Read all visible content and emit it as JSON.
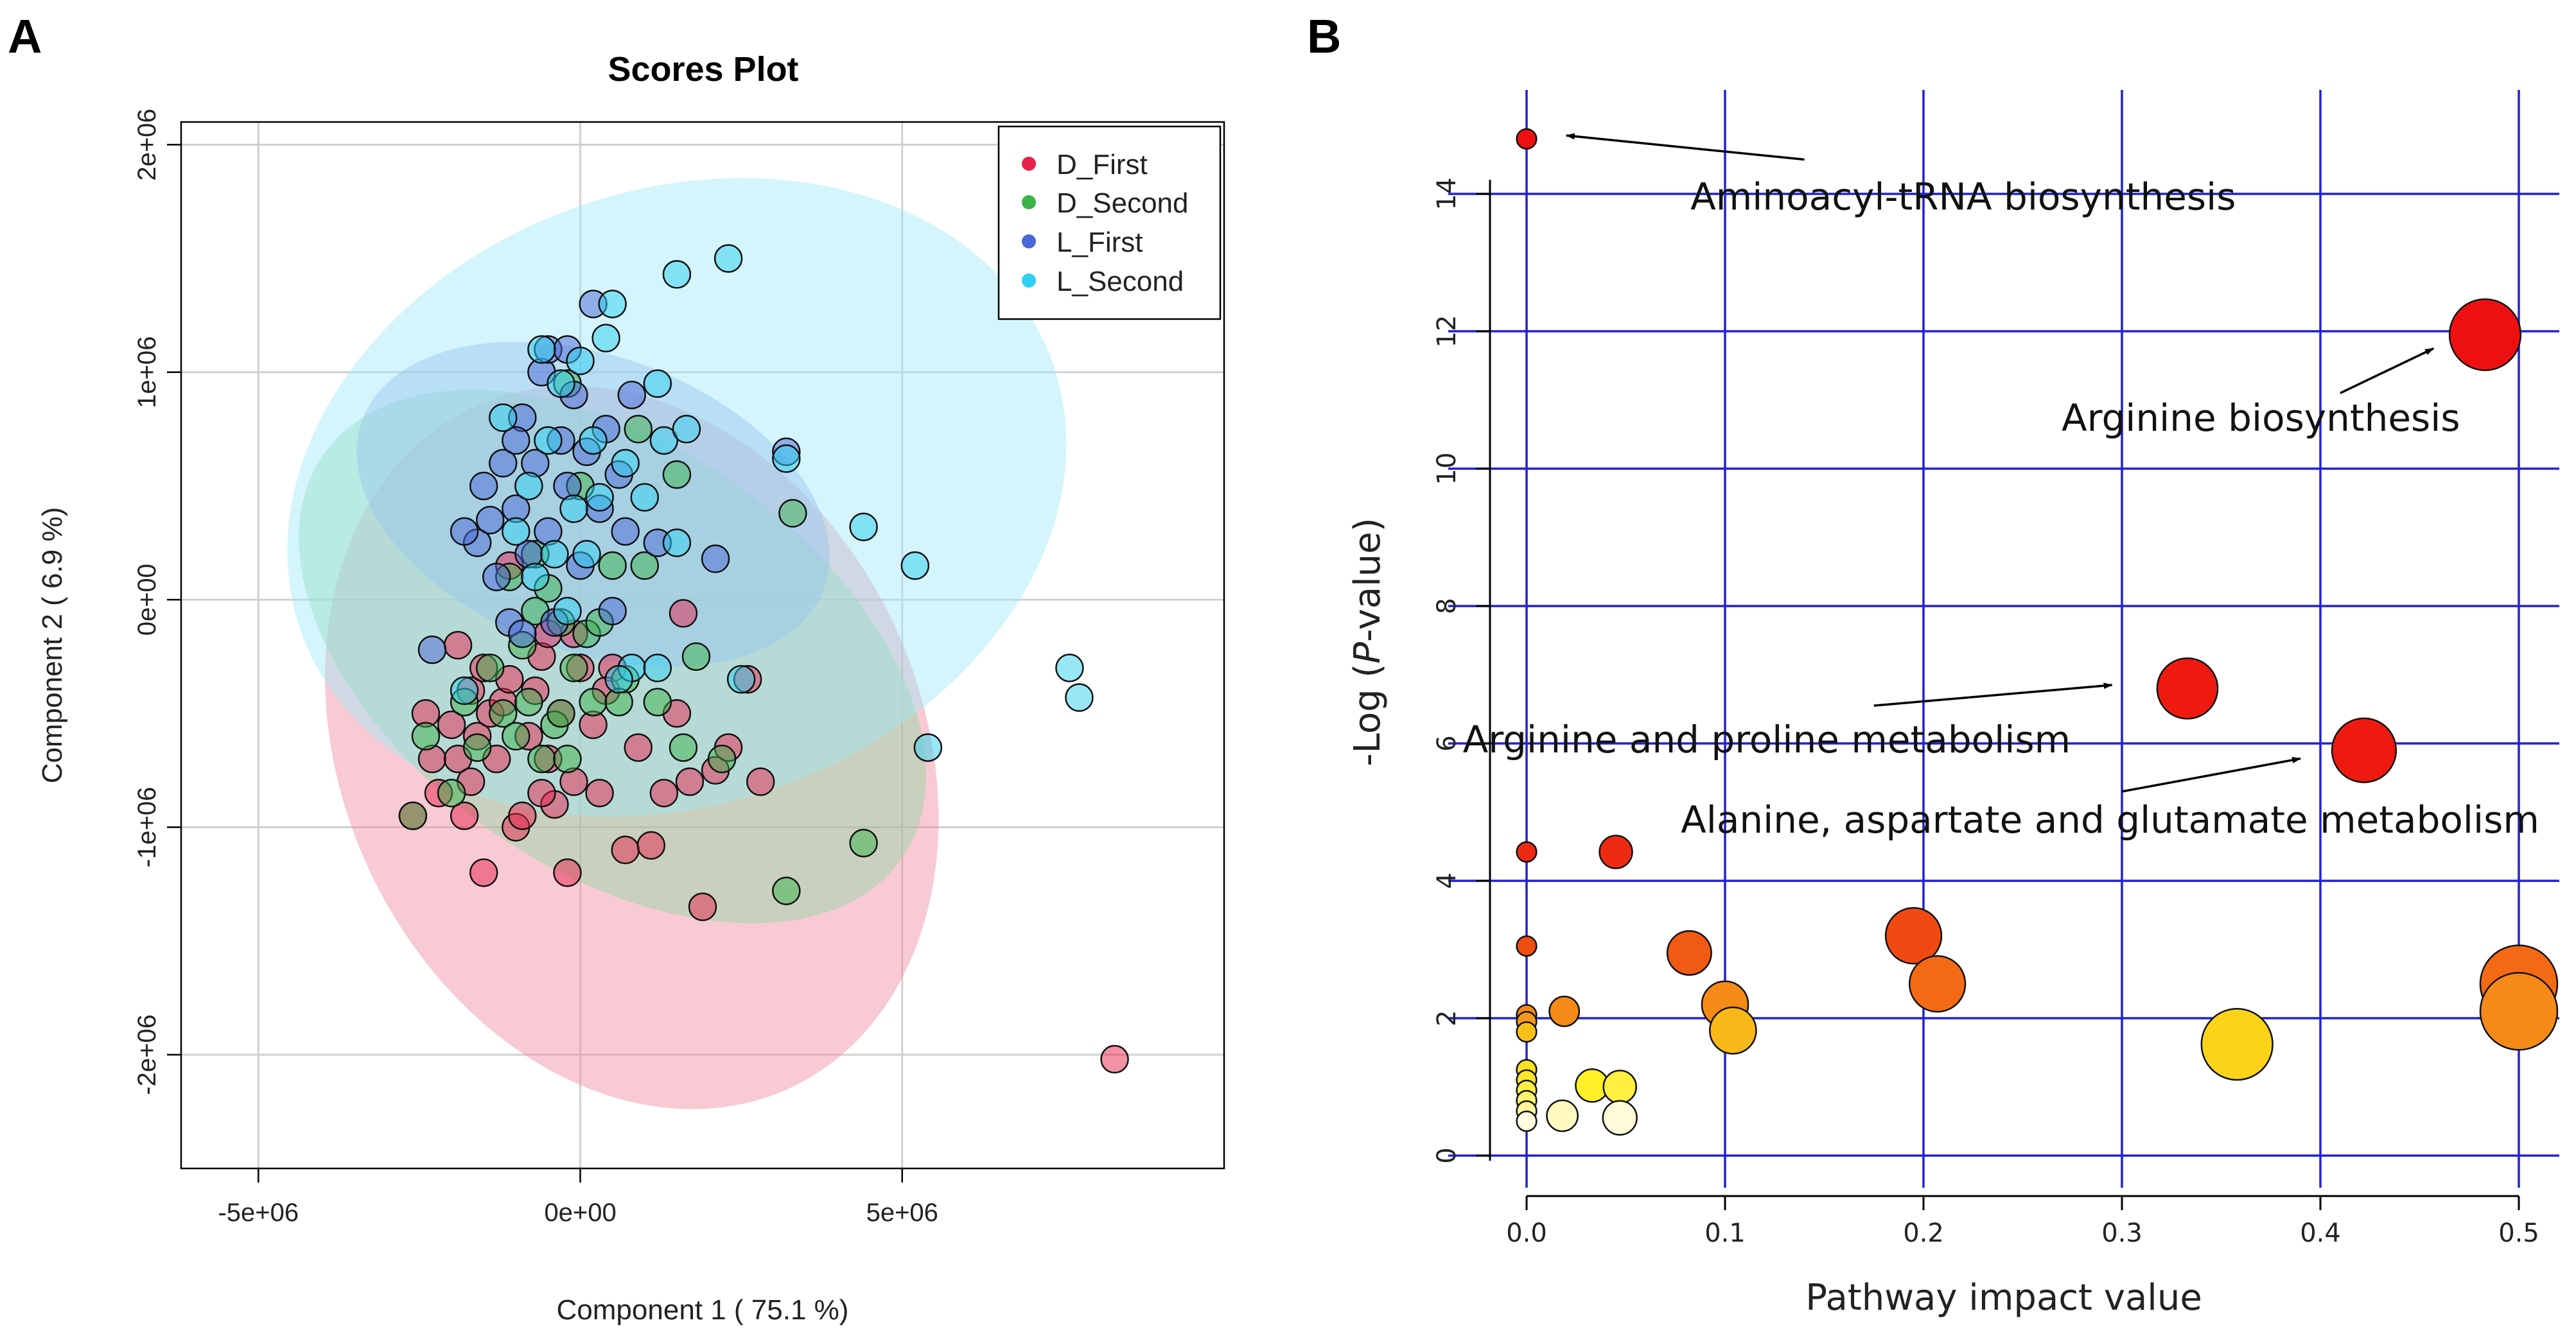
{
  "panels": {
    "a": "A",
    "b": "B"
  },
  "chart_data": [
    {
      "type": "scatter",
      "panel": "A",
      "title": "Scores Plot",
      "xlabel": "Component 1 ( 75.1 %)",
      "ylabel": "Component 2 ( 6.9 %)",
      "xlim": [
        -6200000,
        10000000
      ],
      "ylim": [
        -2500000,
        2100000
      ],
      "x_ticks": [
        -5000000,
        0,
        5000000
      ],
      "x_tick_labels": [
        "-5e+06",
        "0e+00",
        "5e+06"
      ],
      "y_ticks": [
        -2000000,
        -1000000,
        0,
        1000000,
        2000000
      ],
      "y_tick_labels": [
        "-2e+06",
        "-1e+06",
        "0e+00",
        "1e+06",
        "2e+06"
      ],
      "grid": true,
      "legend_position": "top-right",
      "colors": {
        "D_First": "#e8234b",
        "D_Second": "#3cb24b",
        "L_First": "#4a67d6",
        "L_Second": "#2fd0f0"
      },
      "ellipses": [
        {
          "name": "D_First",
          "cx": 800000,
          "cy": -650000,
          "rx": 4500000,
          "ry": 1650000,
          "angle": -25,
          "fill": "#f08aa0"
        },
        {
          "name": "D_Second",
          "cx": 500000,
          "cy": -250000,
          "rx": 3300000,
          "ry": 1550000,
          "angle": -55,
          "fill": "#90d7a2"
        },
        {
          "name": "L_First",
          "cx": 200000,
          "cy": 420000,
          "rx": 2300000,
          "ry": 1080000,
          "angle": -70,
          "fill": "#8fa8ec"
        },
        {
          "name": "L_Second",
          "cx": 1500000,
          "cy": 450000,
          "rx": 6200000,
          "ry": 1350000,
          "angle": -20,
          "fill": "#9fe8f6"
        }
      ],
      "series": [
        {
          "name": "D_First",
          "points": [
            [
              -2400000,
              -500000
            ],
            [
              -2300000,
              -700000
            ],
            [
              -2200000,
              -850000
            ],
            [
              -2000000,
              -550000
            ],
            [
              -1900000,
              -700000
            ],
            [
              -1800000,
              -950000
            ],
            [
              -1700000,
              -400000
            ],
            [
              -1700000,
              -800000
            ],
            [
              -1600000,
              -600000
            ],
            [
              -1500000,
              -300000
            ],
            [
              -1400000,
              -500000
            ],
            [
              -1300000,
              -700000
            ],
            [
              -1200000,
              -450000
            ],
            [
              -1100000,
              -350000
            ],
            [
              -1000000,
              -1000000
            ],
            [
              -900000,
              -950000
            ],
            [
              -800000,
              -600000
            ],
            [
              -700000,
              -400000
            ],
            [
              -600000,
              -250000
            ],
            [
              -500000,
              -700000
            ],
            [
              -400000,
              -900000
            ],
            [
              -300000,
              -500000
            ],
            [
              -200000,
              -1200000
            ],
            [
              -100000,
              -800000
            ],
            [
              0,
              -300000
            ],
            [
              200000,
              -550000
            ],
            [
              300000,
              -850000
            ],
            [
              500000,
              -300000
            ],
            [
              700000,
              -1100000
            ],
            [
              900000,
              -650000
            ],
            [
              1100000,
              -1080000
            ],
            [
              1300000,
              -850000
            ],
            [
              1500000,
              -500000
            ],
            [
              1700000,
              -800000
            ],
            [
              1900000,
              -1350000
            ],
            [
              2100000,
              -750000
            ],
            [
              2300000,
              -650000
            ],
            [
              2600000,
              -350000
            ],
            [
              -1500000,
              -1200000
            ],
            [
              -600000,
              -850000
            ],
            [
              -100000,
              -150000
            ],
            [
              400000,
              -400000
            ],
            [
              -2600000,
              -950000
            ],
            [
              -1100000,
              150000
            ],
            [
              -500000,
              -150000
            ],
            [
              1600000,
              -60000
            ],
            [
              2800000,
              -800000
            ],
            [
              -1900000,
              -200000
            ],
            [
              8300000,
              -2020000
            ]
          ]
        },
        {
          "name": "D_Second",
          "points": [
            [
              -2600000,
              -950000
            ],
            [
              -2400000,
              -600000
            ],
            [
              -2000000,
              -850000
            ],
            [
              -1800000,
              -450000
            ],
            [
              -1600000,
              -650000
            ],
            [
              -1400000,
              -300000
            ],
            [
              -1200000,
              -500000
            ],
            [
              -1100000,
              100000
            ],
            [
              -900000,
              -200000
            ],
            [
              -800000,
              -450000
            ],
            [
              -700000,
              200000
            ],
            [
              -600000,
              -700000
            ],
            [
              -500000,
              50000
            ],
            [
              -400000,
              -550000
            ],
            [
              -300000,
              -100000
            ],
            [
              -200000,
              -700000
            ],
            [
              -100000,
              -300000
            ],
            [
              0,
              500000
            ],
            [
              100000,
              -150000
            ],
            [
              200000,
              -450000
            ],
            [
              300000,
              -100000
            ],
            [
              500000,
              150000
            ],
            [
              700000,
              -350000
            ],
            [
              900000,
              750000
            ],
            [
              1000000,
              150000
            ],
            [
              1200000,
              -450000
            ],
            [
              1500000,
              550000
            ],
            [
              1600000,
              -650000
            ],
            [
              1800000,
              -250000
            ],
            [
              2200000,
              -700000
            ],
            [
              3300000,
              380000
            ],
            [
              3200000,
              -1280000
            ],
            [
              4400000,
              -1070000
            ],
            [
              -200000,
              950000
            ],
            [
              -700000,
              -50000
            ],
            [
              -300000,
              -500000
            ],
            [
              600000,
              -450000
            ],
            [
              -1000000,
              -600000
            ]
          ]
        },
        {
          "name": "L_First",
          "points": [
            [
              -2300000,
              -220000
            ],
            [
              -1600000,
              250000
            ],
            [
              -1500000,
              500000
            ],
            [
              -1400000,
              350000
            ],
            [
              -1300000,
              100000
            ],
            [
              -1200000,
              600000
            ],
            [
              -1100000,
              -100000
            ],
            [
              -1000000,
              400000
            ],
            [
              -900000,
              800000
            ],
            [
              -800000,
              200000
            ],
            [
              -700000,
              600000
            ],
            [
              -600000,
              1000000
            ],
            [
              -500000,
              300000
            ],
            [
              -400000,
              -100000
            ],
            [
              -300000,
              700000
            ],
            [
              -200000,
              500000
            ],
            [
              -100000,
              900000
            ],
            [
              0,
              150000
            ],
            [
              100000,
              650000
            ],
            [
              200000,
              1300000
            ],
            [
              300000,
              400000
            ],
            [
              400000,
              750000
            ],
            [
              500000,
              -50000
            ],
            [
              600000,
              550000
            ],
            [
              700000,
              300000
            ],
            [
              800000,
              900000
            ],
            [
              -1800000,
              300000
            ],
            [
              -500000,
              1100000
            ],
            [
              -200000,
              1100000
            ],
            [
              -900000,
              -150000
            ],
            [
              1200000,
              250000
            ],
            [
              2100000,
              180000
            ],
            [
              3200000,
              650000
            ],
            [
              -1000000,
              700000
            ]
          ]
        },
        {
          "name": "L_Second",
          "points": [
            [
              -1200000,
              800000
            ],
            [
              -1000000,
              300000
            ],
            [
              -800000,
              500000
            ],
            [
              -600000,
              1100000
            ],
            [
              -500000,
              700000
            ],
            [
              -400000,
              200000
            ],
            [
              -300000,
              950000
            ],
            [
              -100000,
              400000
            ],
            [
              0,
              1050000
            ],
            [
              200000,
              700000
            ],
            [
              300000,
              450000
            ],
            [
              400000,
              1150000
            ],
            [
              500000,
              1300000
            ],
            [
              700000,
              600000
            ],
            [
              800000,
              -300000
            ],
            [
              1000000,
              450000
            ],
            [
              1200000,
              950000
            ],
            [
              1300000,
              700000
            ],
            [
              1500000,
              250000
            ],
            [
              1650000,
              750000
            ],
            [
              1500000,
              1430000
            ],
            [
              2300000,
              1500000
            ],
            [
              3200000,
              620000
            ],
            [
              4400000,
              320000
            ],
            [
              5200000,
              150000
            ],
            [
              5400000,
              -650000
            ],
            [
              7600000,
              -300000
            ],
            [
              7750000,
              -430000
            ],
            [
              1200000,
              -300000
            ],
            [
              2500000,
              -350000
            ],
            [
              600000,
              -350000
            ],
            [
              -700000,
              100000
            ],
            [
              100000,
              200000
            ],
            [
              -1800000,
              -400000
            ],
            [
              -200000,
              -50000
            ]
          ]
        }
      ]
    },
    {
      "type": "scatter",
      "panel": "B",
      "xlabel": "Pathway impact value",
      "ylabel_main": "-Log (",
      "ylabel_italic": "P",
      "ylabel_tail": "-value)",
      "xlim": [
        -0.04,
        0.52
      ],
      "ylim": [
        -0.2,
        15.5
      ],
      "x_ticks": [
        0,
        0.1,
        0.2,
        0.3,
        0.4,
        0.5
      ],
      "x_tick_labels": [
        "0.0",
        "0.1",
        "0.2",
        "0.3",
        "0.4",
        "0.5"
      ],
      "y_ticks": [
        0,
        2,
        4,
        6,
        8,
        10,
        12,
        14
      ],
      "y_tick_labels": [
        "0",
        "2",
        "4",
        "6",
        "8",
        "10",
        "12",
        "14"
      ],
      "grid_color": "#2020d8",
      "points": [
        {
          "x": 0.0,
          "y": 14.8,
          "size": 0.03,
          "color": "#ee1010"
        },
        {
          "x": 0.483,
          "y": 11.95,
          "size": 0.9,
          "color": "#ee1010"
        },
        {
          "x": 0.333,
          "y": 6.8,
          "size": 0.72,
          "color": "#ee1a10"
        },
        {
          "x": 0.422,
          "y": 5.9,
          "size": 0.78,
          "color": "#ee1a10"
        },
        {
          "x": 0.0,
          "y": 4.42,
          "size": 0.03,
          "color": "#ee2a10"
        },
        {
          "x": 0.045,
          "y": 4.42,
          "size": 0.25,
          "color": "#ee2a10"
        },
        {
          "x": 0.0,
          "y": 3.05,
          "size": 0.03,
          "color": "#f04d10"
        },
        {
          "x": 0.082,
          "y": 2.95,
          "size": 0.44,
          "color": "#f05a12"
        },
        {
          "x": 0.195,
          "y": 3.2,
          "size": 0.64,
          "color": "#f04a12"
        },
        {
          "x": 0.207,
          "y": 2.5,
          "size": 0.64,
          "color": "#f46a14"
        },
        {
          "x": 0.1,
          "y": 2.2,
          "size": 0.48,
          "color": "#f58a18"
        },
        {
          "x": 0.104,
          "y": 1.82,
          "size": 0.48,
          "color": "#f9b81a"
        },
        {
          "x": 0.5,
          "y": 2.5,
          "size": 1.0,
          "color": "#f46a14"
        },
        {
          "x": 0.5,
          "y": 2.1,
          "size": 1.0,
          "color": "#f58a18"
        },
        {
          "x": 0.358,
          "y": 1.62,
          "size": 0.9,
          "color": "#fcd21a"
        },
        {
          "x": 0.0,
          "y": 2.05,
          "size": 0.03,
          "color": "#f58a18"
        },
        {
          "x": 0.0,
          "y": 1.95,
          "size": 0.03,
          "color": "#f59a18"
        },
        {
          "x": 0.0,
          "y": 1.8,
          "size": 0.03,
          "color": "#f9c01a"
        },
        {
          "x": 0.019,
          "y": 2.1,
          "size": 0.2,
          "color": "#f58a18"
        },
        {
          "x": 0.0,
          "y": 1.25,
          "size": 0.03,
          "color": "#fce020"
        },
        {
          "x": 0.0,
          "y": 1.1,
          "size": 0.03,
          "color": "#fce828"
        },
        {
          "x": 0.0,
          "y": 0.95,
          "size": 0.03,
          "color": "#fff046"
        },
        {
          "x": 0.0,
          "y": 0.8,
          "size": 0.03,
          "color": "#fff470"
        },
        {
          "x": 0.0,
          "y": 0.65,
          "size": 0.03,
          "color": "#fff89a"
        },
        {
          "x": 0.0,
          "y": 0.5,
          "size": 0.03,
          "color": "#fffce0"
        },
        {
          "x": 0.033,
          "y": 1.02,
          "size": 0.25,
          "color": "#fff028"
        },
        {
          "x": 0.047,
          "y": 1.0,
          "size": 0.25,
          "color": "#fff040"
        },
        {
          "x": 0.018,
          "y": 0.58,
          "size": 0.22,
          "color": "#fffac0"
        },
        {
          "x": 0.047,
          "y": 0.55,
          "size": 0.27,
          "color": "#fffad8"
        }
      ],
      "annotations": [
        {
          "text": "Aminoacyl-tRNA biosynthesis",
          "tx": 0.22,
          "ty": 13.77,
          "anchor": "middle",
          "from": [
            0.14,
            14.5
          ],
          "to": [
            0.02,
            14.85
          ]
        },
        {
          "text": "Arginine biosynthesis",
          "tx": 0.37,
          "ty": 10.55,
          "anchor": "middle",
          "from": [
            0.41,
            11.1
          ],
          "to": [
            0.457,
            11.75
          ]
        },
        {
          "text": "Arginine and proline metabolism",
          "tx": 0.121,
          "ty": 5.87,
          "anchor": "middle",
          "from": [
            0.175,
            6.55
          ],
          "to": [
            0.295,
            6.85
          ]
        },
        {
          "text": "Alanine, aspartate and glutamate metabolism",
          "tx": 0.294,
          "ty": 4.7,
          "anchor": "middle",
          "from": [
            0.3,
            5.3
          ],
          "to": [
            0.39,
            5.78
          ]
        }
      ]
    }
  ]
}
